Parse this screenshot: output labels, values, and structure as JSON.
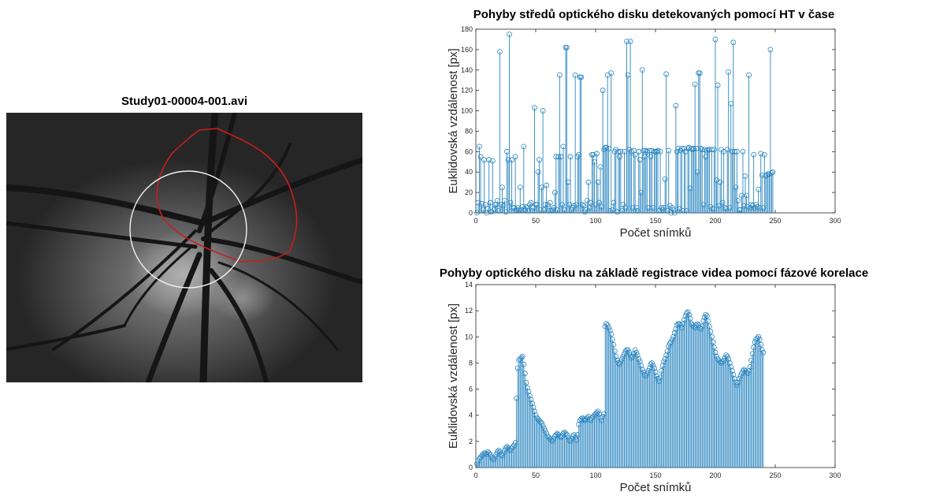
{
  "figure": {
    "title": "Study01-00004-001.avi"
  },
  "chart_data": [
    {
      "type": "stem",
      "title": "Pohyby středů optického disku detekovaných pomocí HT v čase",
      "xlabel": "Počet snímků",
      "ylabel": "Euklidovská vzdálenost [px]",
      "xlim": [
        0,
        300
      ],
      "ylim": [
        0,
        180
      ],
      "xticks": [
        0,
        50,
        100,
        150,
        200,
        250,
        300
      ],
      "yticks": [
        0,
        20,
        40,
        60,
        80,
        100,
        120,
        140,
        160,
        180
      ],
      "color": "#2b86c0",
      "x_start": 1,
      "values": [
        0,
        10,
        65,
        55,
        9,
        3,
        52,
        8,
        0,
        4,
        52,
        10,
        1,
        51,
        3,
        8,
        8,
        12,
        2,
        158,
        8,
        25,
        7,
        12,
        1,
        60,
        52,
        175,
        10,
        52,
        5,
        5,
        55,
        3,
        5,
        3,
        25,
        3,
        6,
        65,
        3,
        6,
        5,
        2,
        8,
        10,
        2,
        5,
        103,
        8,
        8,
        40,
        52,
        3,
        25,
        100,
        3,
        8,
        27,
        8,
        2,
        10,
        2,
        3,
        5,
        20,
        55,
        3,
        55,
        135,
        55,
        8,
        65,
        3,
        162,
        162,
        30,
        8,
        55,
        3,
        5,
        7,
        135,
        8,
        55,
        57,
        133,
        133,
        8,
        7,
        1,
        3,
        12,
        30,
        5,
        10,
        57,
        57,
        50,
        8,
        58,
        30,
        10,
        45,
        6,
        120,
        62,
        64,
        64,
        135,
        63,
        2,
        137,
        3,
        10,
        60,
        62,
        1,
        60,
        55,
        60,
        2,
        8,
        60,
        5,
        168,
        135,
        62,
        168,
        60,
        5,
        61,
        57,
        5,
        2,
        60,
        52,
        20,
        140,
        61,
        55,
        61,
        60,
        5,
        61,
        55,
        61,
        5,
        60,
        60,
        60,
        61,
        2,
        60,
        5,
        3,
        5,
        33,
        136,
        2,
        61,
        7,
        0,
        5,
        3,
        0,
        105,
        60,
        63,
        4,
        61,
        63,
        2,
        63,
        60,
        2,
        63,
        64,
        24,
        63,
        62,
        63,
        126,
        63,
        40,
        137,
        137,
        63,
        62,
        8,
        62,
        55,
        61,
        62,
        62,
        6,
        62,
        4,
        62,
        170,
        32,
        125,
        7,
        30,
        62,
        10,
        60,
        5,
        4,
        62,
        138,
        5,
        107,
        60,
        167,
        60,
        25,
        60,
        12,
        3,
        3,
        17,
        60,
        7,
        36,
        17,
        6,
        135,
        5,
        8,
        7,
        57,
        5,
        8,
        6,
        23,
        5,
        58,
        37,
        5,
        57,
        36,
        37,
        38,
        38,
        160,
        39,
        40
      ]
    },
    {
      "type": "stem",
      "title": "Pohyby optického disku na základě registrace videa pomocí fázové korelace",
      "xlabel": "Počet snímků",
      "ylabel": "Euklidovská vzdálenost [px]",
      "xlim": [
        0,
        300
      ],
      "ylim": [
        0,
        14
      ],
      "xticks": [
        0,
        50,
        100,
        150,
        200,
        250,
        300
      ],
      "yticks": [
        0,
        2,
        4,
        6,
        8,
        10,
        12,
        14
      ],
      "color": "#2b86c0",
      "x_start": 1,
      "values": [
        0.3,
        0.5,
        0.7,
        0.8,
        0.9,
        1.0,
        1.1,
        1.1,
        1.0,
        1.2,
        1.1,
        1.0,
        0.8,
        0.7,
        0.6,
        0.8,
        1.0,
        1.2,
        1.3,
        1.2,
        1.0,
        0.9,
        1.1,
        1.3,
        1.5,
        1.6,
        1.5,
        1.4,
        1.3,
        1.5,
        1.6,
        1.7,
        1.9,
        5.3,
        7.6,
        8.2,
        8.3,
        8.4,
        8.5,
        7.9,
        7.2,
        6.5,
        6.1,
        5.8,
        5.5,
        5.2,
        4.9,
        4.6,
        4.3,
        4.0,
        3.8,
        3.7,
        3.6,
        3.5,
        3.4,
        3.2,
        3.0,
        2.8,
        2.6,
        2.4,
        2.3,
        2.2,
        2.1,
        2.0,
        2.2,
        2.4,
        2.5,
        2.6,
        2.5,
        2.4,
        2.3,
        2.4,
        2.6,
        2.7,
        2.6,
        2.5,
        2.3,
        2.1,
        2.0,
        2.2,
        2.4,
        2.5,
        2.3,
        2.1,
        2.5,
        3.3,
        3.6,
        3.7,
        3.8,
        3.7,
        3.6,
        3.7,
        3.8,
        3.9,
        3.7,
        3.6,
        3.8,
        3.9,
        4.0,
        4.1,
        4.2,
        4.3,
        4.1,
        3.8,
        3.6,
        3.9,
        4.1,
        10.8,
        11.0,
        10.9,
        10.7,
        10.5,
        10.2,
        9.8,
        9.4,
        8.9,
        8.5,
        8.2,
        8.0,
        7.9,
        8.1,
        8.3,
        8.5,
        8.7,
        8.9,
        9.0,
        9.0,
        8.8,
        8.6,
        8.4,
        8.5,
        8.7,
        9.0,
        8.8,
        8.6,
        8.3,
        8.1,
        7.8,
        7.5,
        7.3,
        7.1,
        7.0,
        7.2,
        7.4,
        7.6,
        7.9,
        8.0,
        7.8,
        7.6,
        7.3,
        7.0,
        6.8,
        6.6,
        6.9,
        7.4,
        7.8,
        8.1,
        8.3,
        8.6,
        8.9,
        9.3,
        9.5,
        9.6,
        9.8,
        10.0,
        10.3,
        10.6,
        10.9,
        11.0,
        11.0,
        10.9,
        10.7,
        11.0,
        11.3,
        11.6,
        11.8,
        11.9,
        11.7,
        11.4,
        11.0,
        10.9,
        10.8,
        10.7,
        10.9,
        11.0,
        10.9,
        10.7,
        10.6,
        10.8,
        11.2,
        11.5,
        11.7,
        11.6,
        11.2,
        10.8,
        10.4,
        10.0,
        9.6,
        9.2,
        8.8,
        8.5,
        8.3,
        8.2,
        8.1,
        8.0,
        8.1,
        8.2,
        8.4,
        8.6,
        8.5,
        8.3,
        8.0,
        7.7,
        7.4,
        7.1,
        6.8,
        6.5,
        6.3,
        6.5,
        6.8,
        7.0,
        7.2,
        7.4,
        7.5,
        7.4,
        7.3,
        7.2,
        7.4,
        7.7,
        8.2,
        8.7,
        9.2,
        9.6,
        9.8,
        9.9,
        10.0,
        9.8,
        9.4,
        9.0,
        8.8
      ]
    }
  ]
}
